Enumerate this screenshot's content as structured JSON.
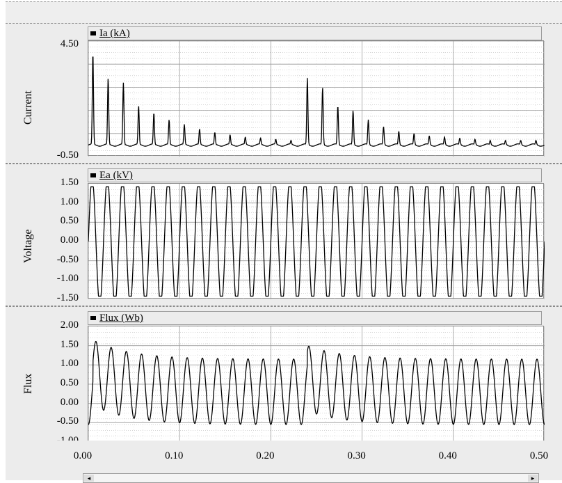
{
  "chart_data": [
    {
      "type": "line",
      "ylabel": "Current",
      "legend": "Ia (kA)",
      "ylim": [
        -0.5,
        4.5
      ],
      "yticks": [
        "4.50",
        "-0.50"
      ],
      "xlim": [
        0,
        0.5
      ],
      "grid": true,
      "series": [
        {
          "name": "Ia (kA)",
          "period": 0.0167,
          "first_peak_time": 0.005,
          "second_event_time": 0.24,
          "peaks_event1": [
            4.0,
            2.9,
            2.7,
            1.7,
            1.4,
            1.1,
            0.9,
            0.7,
            0.55,
            0.45,
            0.35,
            0.3,
            0.25,
            0.2
          ],
          "peaks_event2": [
            2.9,
            2.5,
            1.7,
            1.5,
            1.1,
            0.8,
            0.6,
            0.5,
            0.4,
            0.35,
            0.3,
            0.25,
            0.2,
            0.2,
            0.2,
            0.2
          ]
        }
      ]
    },
    {
      "type": "line",
      "ylabel": "Voltage",
      "legend": "Ea (kV)",
      "ylim": [
        -1.5,
        1.5
      ],
      "yticks": [
        "1.50",
        "1.00",
        "0.50",
        "0.00",
        "-0.50",
        "-1.00",
        "-1.50"
      ],
      "xlim": [
        0,
        0.5
      ],
      "grid": true,
      "series": [
        {
          "name": "Ea (kV)",
          "amplitude": 1.42,
          "frequency_hz": 60
        }
      ]
    },
    {
      "type": "line",
      "ylabel": "Flux",
      "legend": "Flux (Wb)",
      "ylim": [
        -1.0,
        2.0
      ],
      "yticks": [
        "2.00",
        "1.50",
        "1.00",
        "0.50",
        "0.00",
        "-0.50",
        "-1.00"
      ],
      "xlim": [
        0,
        0.5
      ],
      "grid": true,
      "series": [
        {
          "name": "Flux (Wb)",
          "amplitude": 1.0,
          "frequency_hz": 60,
          "event_times": [
            0.005,
            0.24
          ],
          "initial_offset": 0.8
        }
      ]
    }
  ],
  "xaxis": {
    "ticks": [
      "0.00",
      "0.10",
      "0.20",
      "0.30",
      "0.40",
      "0.50"
    ],
    "values": [
      0,
      0.1,
      0.2,
      0.3,
      0.4,
      0.5
    ]
  },
  "scroll": {
    "left_arrow": "◂",
    "right_arrow": "▸"
  }
}
